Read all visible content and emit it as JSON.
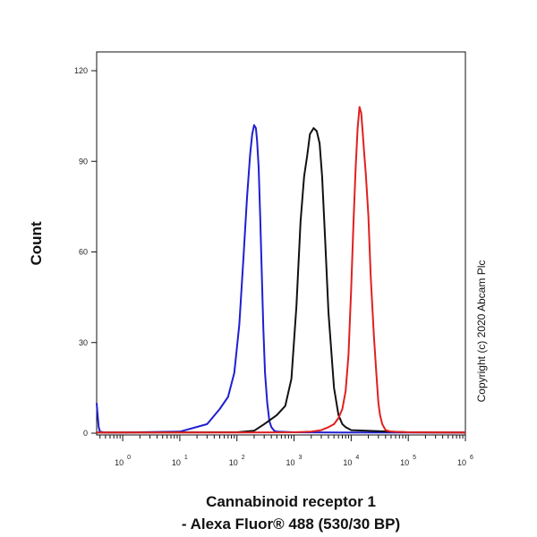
{
  "chart_data": {
    "type": "line",
    "xlabel_line1": "Cannabinoid receptor 1",
    "xlabel_line2": "- Alexa Fluor® 488 (530/30 BP)",
    "ylabel": "Count",
    "x_scale": "log",
    "xlim": [
      0.35,
      1000000
    ],
    "ylim": [
      0,
      125
    ],
    "y_ticks": [
      0,
      30,
      60,
      90,
      120
    ],
    "x_ticks": [
      {
        "base": "10",
        "exp": "0"
      },
      {
        "base": "10",
        "exp": "1"
      },
      {
        "base": "10",
        "exp": "2"
      },
      {
        "base": "10",
        "exp": "3"
      },
      {
        "base": "10",
        "exp": "4"
      },
      {
        "base": "10",
        "exp": "5"
      },
      {
        "base": "10",
        "exp": "6"
      }
    ],
    "grid": false,
    "legend": "none",
    "series": [
      {
        "color": "#1f1fd0",
        "x": [
          0.35,
          0.36,
          0.38,
          0.4,
          0.5,
          1,
          10,
          30,
          50,
          70,
          90,
          110,
          130,
          150,
          170,
          185,
          200,
          215,
          225,
          240,
          255,
          270,
          290,
          310,
          340,
          370,
          400,
          450,
          500,
          1000,
          10000,
          1000000
        ],
        "y": [
          10,
          7,
          2,
          0.5,
          0.2,
          0.2,
          0.5,
          3,
          8,
          12,
          20,
          36,
          58,
          78,
          92,
          99,
          102,
          101,
          97,
          88,
          72,
          55,
          35,
          20,
          10,
          4,
          2,
          0.8,
          0.5,
          0.3,
          0.2,
          0.2
        ]
      },
      {
        "color": "#111111",
        "x": [
          0.35,
          100,
          200,
          300,
          500,
          700,
          900,
          1100,
          1300,
          1500,
          1700,
          1900,
          2200,
          2500,
          2800,
          3100,
          3500,
          4000,
          5000,
          6000,
          7000,
          8000,
          10000,
          100000,
          1000000
        ],
        "y": [
          0.2,
          0.3,
          0.8,
          3,
          6,
          9,
          18,
          42,
          70,
          85,
          92,
          99,
          101,
          100,
          96,
          85,
          64,
          40,
          15,
          6,
          3,
          2,
          1,
          0.3,
          0.2
        ]
      },
      {
        "color": "#e02020",
        "x": [
          0.35,
          100,
          1000,
          2000,
          3000,
          4000,
          5000,
          6000,
          7000,
          8000,
          9000,
          10000,
          11000,
          12000,
          13000,
          14000,
          15000,
          16000,
          17000,
          18000,
          20000,
          22000,
          25000,
          28000,
          30000,
          32000,
          35000,
          40000,
          50000,
          100000,
          1000000
        ],
        "y": [
          0.2,
          0.2,
          0.3,
          0.5,
          1,
          2,
          3,
          5,
          8,
          14,
          26,
          48,
          70,
          88,
          101,
          108,
          106,
          99,
          92,
          86,
          72,
          52,
          32,
          18,
          10,
          6,
          3,
          1,
          0.5,
          0.3,
          0.2
        ]
      }
    ]
  },
  "copyright": "Copyright (c) 2020 Abcam Plc"
}
